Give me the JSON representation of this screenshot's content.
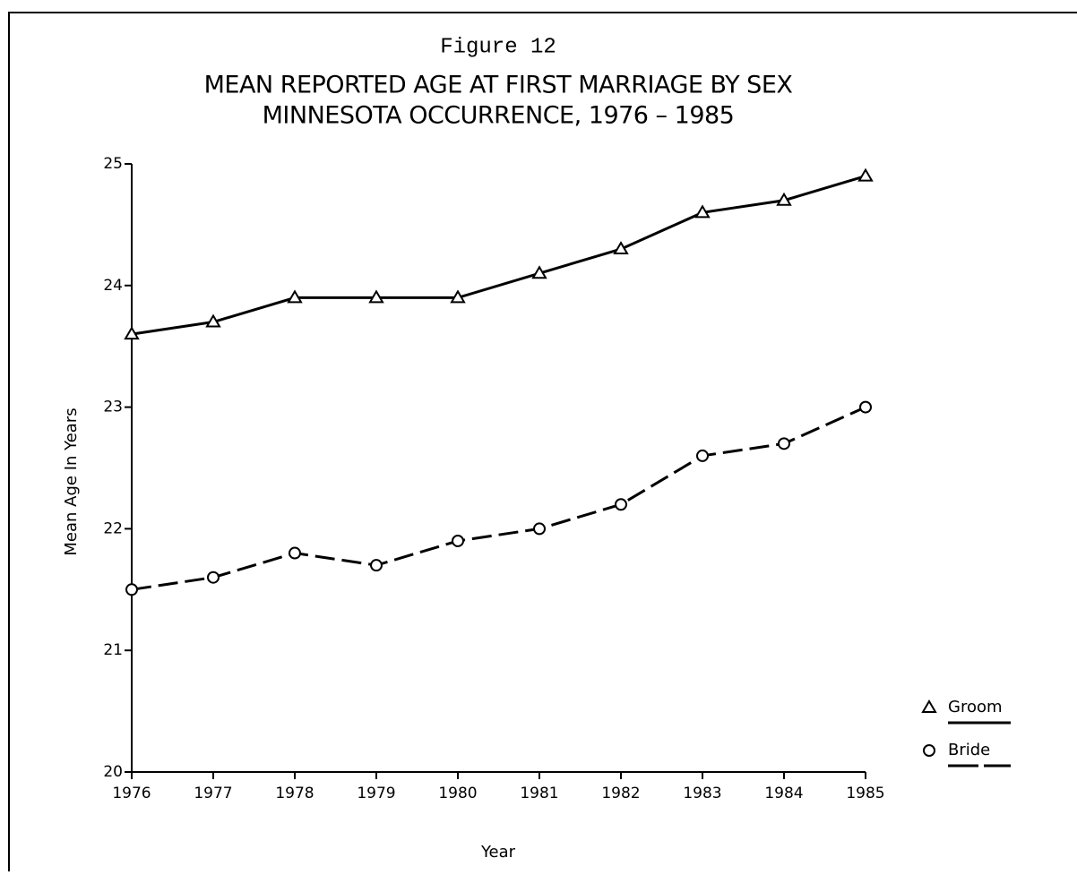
{
  "chart_data": {
    "type": "line",
    "title": "Figure 12",
    "subtitle": [
      "MEAN REPORTED AGE AT FIRST MARRIAGE BY SEX",
      "MINNESOTA OCCURRENCE, 1976 – 1985"
    ],
    "x_label": "Year",
    "y_label": "Mean Age In Years",
    "x": [
      1976,
      1977,
      1978,
      1979,
      1980,
      1981,
      1982,
      1983,
      1984,
      1985
    ],
    "xlim": [
      1976,
      1985
    ],
    "xticks": [
      1976,
      1977,
      1978,
      1979,
      1980,
      1981,
      1982,
      1983,
      1984,
      1985
    ],
    "ylim": [
      20,
      25
    ],
    "yticks": [
      20,
      21,
      22,
      23,
      24,
      25
    ],
    "grid": false,
    "legend": "right",
    "series": [
      {
        "name": "Groom",
        "color": "#000000",
        "marker": "triangle",
        "dash": false,
        "values": [
          23.6,
          23.7,
          23.9,
          23.9,
          23.9,
          24.1,
          24.3,
          24.6,
          24.7,
          24.9
        ]
      },
      {
        "name": "Bride",
        "color": "#000000",
        "marker": "circle",
        "dash": true,
        "values": [
          21.5,
          21.6,
          21.8,
          21.7,
          21.9,
          22.0,
          22.2,
          22.6,
          22.7,
          23.0
        ]
      }
    ]
  }
}
